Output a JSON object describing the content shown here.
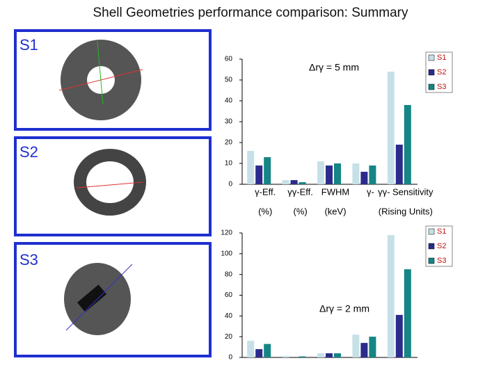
{
  "title": "Shell Geometries performance comparison: Summary",
  "panels": [
    "S1",
    "S2",
    "S3"
  ],
  "chart_data": [
    {
      "type": "bar",
      "title": "Δrγ = 5 mm",
      "categories": [
        [
          "γ-Eff.",
          "(%)"
        ],
        [
          "γγ-Eff.",
          "(%)"
        ],
        [
          "FWHM",
          "(keV)"
        ],
        [
          "γ-"
        ],
        [
          "γγ- Sensitivity",
          "(Rising Units)"
        ]
      ],
      "series": [
        {
          "name": "S1",
          "color": "#c6e0e8",
          "values": [
            16,
            2,
            11,
            10,
            54
          ]
        },
        {
          "name": "S2",
          "color": "#2b2b8c",
          "values": [
            9,
            2,
            9,
            6,
            19
          ]
        },
        {
          "name": "S3",
          "color": "#158585",
          "values": [
            13,
            1,
            10,
            9,
            38
          ]
        }
      ],
      "ylim": [
        0,
        60
      ],
      "yticks": [
        0,
        10,
        20,
        30,
        40,
        50,
        60
      ]
    },
    {
      "type": "bar",
      "title": "Δrγ = 2 mm",
      "categories": [
        null,
        null,
        null,
        null,
        null
      ],
      "series": [
        {
          "name": "S1",
          "color": "#c6e0e8",
          "values": [
            16,
            1.5,
            4,
            22,
            118
          ]
        },
        {
          "name": "S2",
          "color": "#2b2b8c",
          "values": [
            8,
            0,
            4,
            14,
            41
          ]
        },
        {
          "name": "S3",
          "color": "#158585",
          "values": [
            13,
            1,
            4,
            20,
            85
          ]
        }
      ],
      "ylim": [
        0,
        120
      ],
      "yticks": [
        0,
        20,
        40,
        60,
        80,
        100,
        120
      ]
    }
  ]
}
